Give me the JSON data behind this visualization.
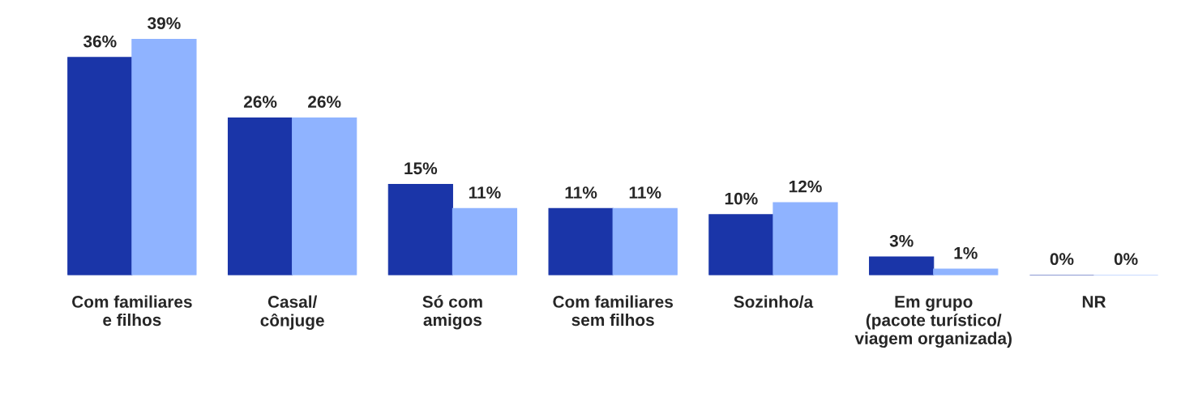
{
  "chart_data": {
    "type": "bar",
    "categories": [
      "Com familiares\ne filhos",
      "Casal/\ncônjuge",
      "Só com\namigos",
      "Com familiares\nsem filhos",
      "Sozinho/a",
      "Em grupo\n(pacote turístico/\nviagem organizada)",
      "NR"
    ],
    "series": [
      {
        "color": "#1a35a8",
        "values": [
          36,
          26,
          15,
          11,
          10,
          3,
          0
        ],
        "value_labels": [
          "36%",
          "26%",
          "15%",
          "11%",
          "10%",
          "3%",
          "0%"
        ]
      },
      {
        "color": "#8fb3ff",
        "values": [
          39,
          26,
          11,
          11,
          12,
          1,
          0
        ],
        "value_labels": [
          "39%",
          "26%",
          "11%",
          "11%",
          "12%",
          "1%",
          "0%"
        ]
      }
    ]
  }
}
